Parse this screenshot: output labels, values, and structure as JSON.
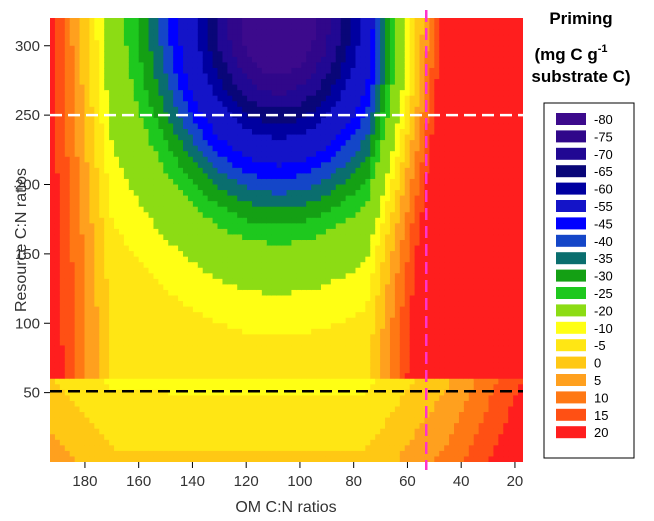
{
  "chart_data": {
    "type": "heatmap",
    "xlabel": "OM C:N ratios",
    "ylabel": "Resource C:N ratios",
    "xlim": [
      193,
      17
    ],
    "ylim": [
      0,
      320
    ],
    "x_reversed": true,
    "xticks": [
      180,
      160,
      140,
      120,
      100,
      80,
      60,
      40,
      20
    ],
    "yticks": [
      50,
      100,
      150,
      200,
      250,
      300
    ],
    "legend": {
      "title": "Priming",
      "unit_prefix": "(mg C g",
      "unit_sup": "-1",
      "unit_suffix": "substrate C)",
      "placement": "right",
      "levels": [
        -80,
        -75,
        -70,
        -65,
        -60,
        -55,
        -45,
        -40,
        -35,
        -30,
        -25,
        -20,
        -10,
        -5,
        0,
        5,
        10,
        15,
        20
      ],
      "colors": [
        "#3c0a8c",
        "#30078a",
        "#210893",
        "#090678",
        "#0000a0",
        "#1414c8",
        "#0000ff",
        "#1446c8",
        "#0a6e6e",
        "#14a014",
        "#1ec81e",
        "#8cdc14",
        "#ffff14",
        "#ffe614",
        "#ffc814",
        "#ffa01e",
        "#ff7814",
        "#ff5014",
        "#ff1e1e"
      ]
    },
    "reference_lines": [
      {
        "axis": "y",
        "value": 250,
        "color": "#ffffff",
        "style": "dashed"
      },
      {
        "axis": "y",
        "value": 51,
        "color": "#000000",
        "style": "dashed"
      },
      {
        "axis": "x",
        "value": 53,
        "color": "#ff33cc",
        "style": "dashed"
      }
    ]
  }
}
